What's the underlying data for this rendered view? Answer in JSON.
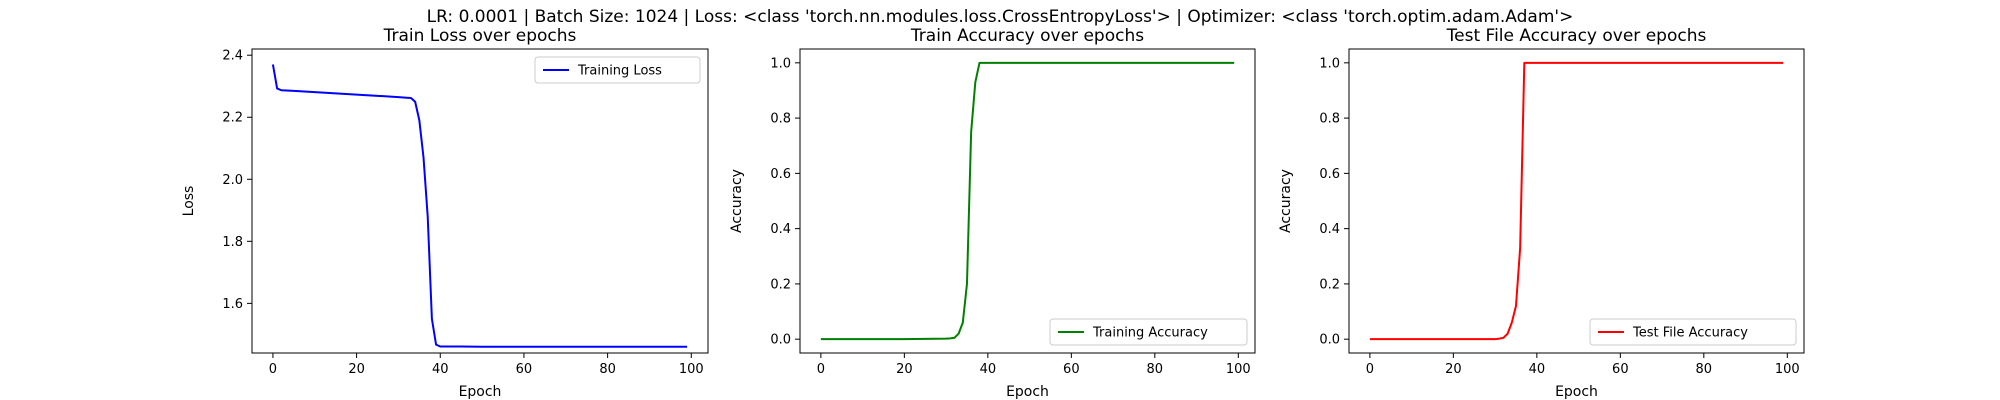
{
  "figure": {
    "suptitle": "LR: 0.0001 | Batch Size: 1024 | Loss: <class 'torch.nn.modules.loss.CrossEntropyLoss'> | Optimizer: <class 'torch.optim.adam.Adam'>"
  },
  "chart_data": [
    {
      "type": "line",
      "title": "Train Loss over epochs",
      "xlabel": "Epoch",
      "ylabel": "Loss",
      "xlim": [
        -5,
        104
      ],
      "ylim": [
        1.44,
        2.42
      ],
      "xticks": [
        0,
        20,
        40,
        60,
        80,
        100
      ],
      "yticks": [
        1.6,
        1.8,
        2.0,
        2.2,
        2.4
      ],
      "ytick_format": 1,
      "legend_position": "upper-right",
      "series": [
        {
          "name": "Training Loss",
          "color": "#0000ff",
          "x": [
            0,
            1,
            2,
            5,
            10,
            15,
            20,
            25,
            30,
            32,
            33,
            34,
            35,
            36,
            37,
            38,
            39,
            40,
            45,
            50,
            60,
            70,
            80,
            90,
            99
          ],
          "y": [
            2.37,
            2.293,
            2.287,
            2.285,
            2.281,
            2.277,
            2.273,
            2.269,
            2.265,
            2.263,
            2.262,
            2.25,
            2.19,
            2.07,
            1.88,
            1.55,
            1.467,
            1.461,
            1.461,
            1.46,
            1.46,
            1.46,
            1.46,
            1.46,
            1.46
          ]
        }
      ],
      "grid": false
    },
    {
      "type": "line",
      "title": "Train Accuracy over epochs",
      "xlabel": "Epoch",
      "ylabel": "Accuracy",
      "xlim": [
        -5,
        104
      ],
      "ylim": [
        -0.05,
        1.05
      ],
      "xticks": [
        0,
        20,
        40,
        60,
        80,
        100
      ],
      "yticks": [
        0.0,
        0.2,
        0.4,
        0.6,
        0.8,
        1.0
      ],
      "ytick_format": 1,
      "legend_position": "lower-right",
      "series": [
        {
          "name": "Training Accuracy",
          "color": "#008000",
          "x": [
            0,
            10,
            20,
            30,
            31,
            32,
            33,
            34,
            35,
            36,
            37,
            38,
            39,
            40,
            50,
            60,
            70,
            80,
            90,
            99
          ],
          "y": [
            0.0,
            0.0,
            0.0,
            0.002,
            0.003,
            0.005,
            0.02,
            0.06,
            0.2,
            0.75,
            0.93,
            1.0,
            1.0,
            1.0,
            1.0,
            1.0,
            1.0,
            1.0,
            1.0,
            1.0
          ]
        }
      ],
      "grid": false
    },
    {
      "type": "line",
      "title": "Test File Accuracy over epochs",
      "xlabel": "Epoch",
      "ylabel": "Accuracy",
      "xlim": [
        -5,
        104
      ],
      "ylim": [
        -0.05,
        1.05
      ],
      "xticks": [
        0,
        20,
        40,
        60,
        80,
        100
      ],
      "yticks": [
        0.0,
        0.2,
        0.4,
        0.6,
        0.8,
        1.0
      ],
      "ytick_format": 1,
      "legend_position": "lower-right",
      "series": [
        {
          "name": "Test File Accuracy",
          "color": "#ff0000",
          "x": [
            0,
            10,
            20,
            30,
            31,
            32,
            33,
            34,
            35,
            36,
            37,
            38,
            40,
            50,
            60,
            70,
            80,
            90,
            99
          ],
          "y": [
            0.0,
            0.0,
            0.0,
            0.0,
            0.002,
            0.005,
            0.02,
            0.06,
            0.12,
            0.33,
            1.0,
            1.0,
            1.0,
            1.0,
            1.0,
            1.0,
            1.0,
            1.0,
            1.0
          ]
        }
      ],
      "grid": false
    }
  ]
}
